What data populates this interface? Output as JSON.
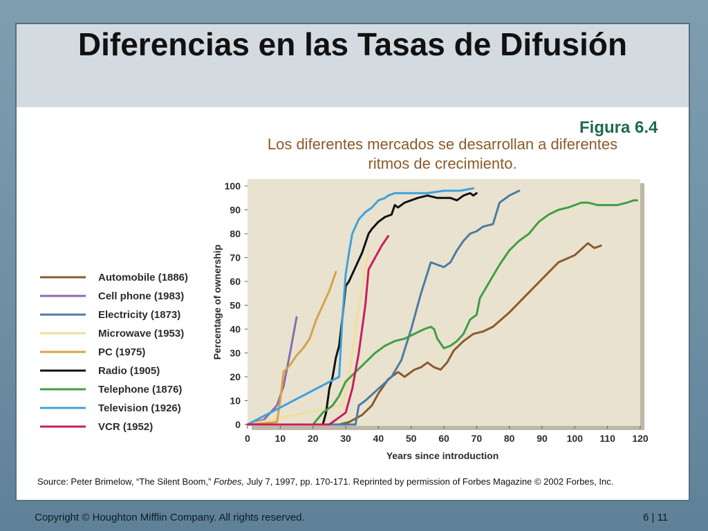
{
  "slide": {
    "title": "Diferencias en las Tasas de Difusión",
    "figure_label": "Figura 6.4",
    "subtitle": "Los diferentes mercados se desarrollan a diferentes ritmos de crecimiento.",
    "source": {
      "prefix": "Source:  Peter Brimelow, “The Silent Boom,” ",
      "journal": "Forbes,",
      "suffix": " July 7, 1997, pp. 170-171. Reprinted by permission of Forbes Magazine © 2002 Forbes, Inc."
    },
    "footer_copyright": "Copyright © Houghton Mifflin Company. All rights reserved.",
    "footer_page": "6 | 11"
  },
  "chart_data": {
    "type": "line",
    "title": "",
    "xlabel": "Years since introduction",
    "ylabel": "Percentage of ownership",
    "xlim": [
      0,
      120
    ],
    "ylim": [
      0,
      100
    ],
    "xticks": [
      0,
      10,
      20,
      30,
      40,
      50,
      60,
      70,
      80,
      90,
      100,
      110,
      120
    ],
    "yticks": [
      0,
      10,
      20,
      30,
      40,
      50,
      60,
      70,
      80,
      90,
      100
    ],
    "grid": false,
    "legend_position": "left",
    "colors": {
      "plot_background": "#e9e2cf",
      "Automobile (1886)": "#8b5a2b",
      "Cell phone (1983)": "#8a6aae",
      "Electricity (1873)": "#4d7aa6",
      "Microwave (1953)": "#f1df9a",
      "PC (1975)": "#d4a24a",
      "Radio (1905)": "#111111",
      "Telephone (1876)": "#3f9e45",
      "Television (1926)": "#3ea2dc",
      "VCR (1952)": "#c81e5a"
    },
    "series": [
      {
        "name": "Automobile (1886)",
        "x": [
          0,
          28,
          31,
          35,
          38,
          40,
          43,
          46,
          48,
          51,
          53,
          55,
          57,
          59,
          61,
          63,
          66,
          69,
          72,
          75,
          80,
          85,
          90,
          95,
          100,
          104,
          106,
          108
        ],
        "y": [
          0,
          0,
          1,
          4,
          8,
          13,
          19,
          22,
          20,
          23,
          24,
          26,
          24,
          23,
          26,
          31,
          35,
          38,
          39,
          41,
          47,
          54,
          61,
          68,
          71,
          76,
          74,
          75
        ]
      },
      {
        "name": "Cell phone (1983)",
        "x": [
          0,
          5,
          7,
          9,
          11,
          13,
          15
        ],
        "y": [
          0,
          2,
          5,
          8,
          16,
          30,
          45
        ]
      },
      {
        "name": "Electricity (1873)",
        "x": [
          0,
          33,
          34,
          36,
          40,
          44,
          47,
          50,
          53,
          56,
          58,
          60,
          62,
          64,
          66,
          68,
          70,
          72,
          75,
          77,
          80,
          83
        ],
        "y": [
          0,
          0,
          8,
          10,
          15,
          20,
          27,
          40,
          55,
          68,
          67,
          66,
          68,
          73,
          77,
          80,
          81,
          83,
          84,
          93,
          96,
          98
        ]
      },
      {
        "name": "Microwave (1953)",
        "x": [
          0,
          29,
          31,
          33,
          35,
          37
        ],
        "y": [
          0,
          8,
          20,
          40,
          57,
          73
        ]
      },
      {
        "name": "PC (1975)",
        "x": [
          0,
          9,
          10,
          11,
          13,
          15,
          17,
          19,
          21,
          23,
          25,
          27
        ],
        "y": [
          0,
          1,
          10,
          22,
          25,
          29,
          32,
          36,
          44,
          50,
          56,
          64
        ]
      },
      {
        "name": "Radio (1905)",
        "x": [
          0,
          23,
          24,
          25,
          26,
          27,
          28,
          29,
          30,
          31,
          33,
          35,
          37,
          38,
          40,
          42,
          44,
          45,
          46,
          48,
          50,
          52,
          55,
          58,
          62,
          64,
          66,
          68,
          69,
          70
        ],
        "y": [
          0,
          0,
          5,
          15,
          20,
          28,
          33,
          45,
          58,
          60,
          66,
          72,
          80,
          82,
          85,
          87,
          88,
          92,
          91,
          93,
          94,
          95,
          96,
          95,
          95,
          94,
          96,
          97,
          96,
          97
        ]
      },
      {
        "name": "Telephone (1876)",
        "x": [
          0,
          20,
          23,
          26,
          28,
          30,
          33,
          36,
          39,
          42,
          45,
          48,
          51,
          54,
          56,
          57,
          58,
          60,
          62,
          64,
          66,
          68,
          70,
          71,
          74,
          77,
          80,
          83,
          86,
          89,
          92,
          95,
          98,
          100,
          102,
          104,
          107,
          110,
          113,
          116,
          118,
          119
        ],
        "y": [
          0,
          0,
          5,
          8,
          12,
          18,
          22,
          26,
          30,
          33,
          35,
          36,
          38,
          40,
          41,
          40,
          36,
          32,
          33,
          35,
          38,
          44,
          46,
          53,
          60,
          67,
          73,
          77,
          80,
          85,
          88,
          90,
          91,
          92,
          93,
          93,
          92,
          92,
          92,
          93,
          94,
          94
        ]
      },
      {
        "name": "Television (1926)",
        "x": [
          0,
          28,
          29,
          30,
          31,
          32,
          34,
          36,
          38,
          40,
          42,
          43,
          45,
          50,
          55,
          60,
          65,
          69
        ],
        "y": [
          0,
          20,
          45,
          63,
          72,
          80,
          86,
          89,
          91,
          94,
          95,
          96,
          97,
          97,
          97,
          98,
          98,
          99
        ]
      },
      {
        "name": "VCR (1952)",
        "x": [
          0,
          25,
          30,
          32,
          34,
          36,
          37,
          39,
          41,
          43
        ],
        "y": [
          0,
          0,
          5,
          15,
          30,
          50,
          65,
          70,
          75,
          79
        ]
      }
    ]
  }
}
